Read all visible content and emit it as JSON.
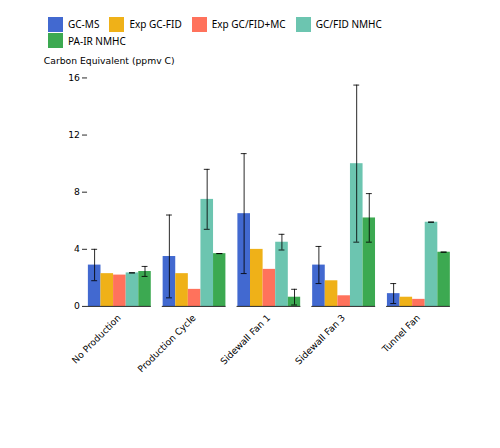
{
  "chart_data": {
    "type": "bar",
    "categories": [
      "No Production",
      "Production Cycle",
      "Sidewall Fan 1",
      "Sidewall Fan 3",
      "Tunnel Fan"
    ],
    "series": [
      {
        "name": "GC-MS",
        "values": [
          2.9,
          3.5,
          6.5,
          2.9,
          0.9
        ],
        "errors": [
          1.1,
          2.9,
          4.2,
          1.3,
          0.7
        ]
      },
      {
        "name": "Exp GC-FID",
        "values": [
          2.3,
          2.3,
          4.0,
          1.8,
          0.65
        ]
      },
      {
        "name": "Exp GC/FID+MC",
        "values": [
          2.2,
          1.2,
          2.6,
          0.75,
          0.5
        ]
      },
      {
        "name": "GC/FID NMHC",
        "values": [
          2.35,
          7.5,
          4.5,
          10.0,
          5.9
        ],
        "errors": [
          0.0,
          2.1,
          0.55,
          5.5,
          0.0
        ]
      },
      {
        "name": "PA-IR NMHC",
        "values": [
          2.45,
          3.7,
          0.65,
          6.2,
          3.8
        ],
        "errors": [
          0.35,
          0.0,
          0.55,
          1.7,
          0.0
        ]
      }
    ],
    "ylabel": "Carbon Equivalent (ppmv C)",
    "ylim": [
      0,
      16
    ],
    "yticks": [
      0,
      4,
      8,
      12,
      16
    ],
    "grid": false,
    "legend": "upper left"
  }
}
